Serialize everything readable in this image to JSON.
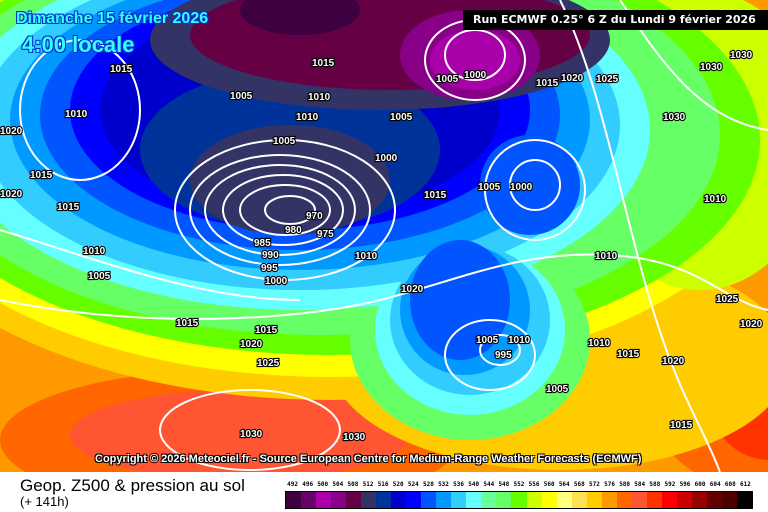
{
  "header": {
    "date_title": "Dimanche 15 février 2026",
    "time_title": "4:00 locale",
    "run_info": "Run ECMWF 0.25° 6 Z du Lundi 9 février 2026"
  },
  "copyright": "Copyright © 2026 Meteociel.fr - Source European Centre for Medium-Range Weather Forecasts (ECMWF)",
  "footer": {
    "product_title": "Geop. Z500 & pression au sol",
    "lead_time": "(+ 141h)"
  },
  "legend": {
    "values": [
      "492",
      "496",
      "500",
      "504",
      "508",
      "512",
      "516",
      "520",
      "524",
      "528",
      "532",
      "536",
      "540",
      "544",
      "548",
      "552",
      "556",
      "560",
      "564",
      "568",
      "572",
      "576",
      "580",
      "584",
      "588",
      "592",
      "596",
      "600",
      "604",
      "608",
      "612"
    ],
    "colors": [
      "#3d0040",
      "#6a0068",
      "#aa00aa",
      "#880088",
      "#660044",
      "#333366",
      "#003399",
      "#0000cc",
      "#0000ff",
      "#0055ff",
      "#0099ff",
      "#33ccff",
      "#66ffff",
      "#66ff99",
      "#66ff66",
      "#66ff00",
      "#ccff00",
      "#ffff00",
      "#ffff80",
      "#ffe050",
      "#ffcc00",
      "#ff9900",
      "#ff6600",
      "#ff5533",
      "#ff3300",
      "#ff0000",
      "#cc0000",
      "#990000",
      "#660000",
      "#4d0000",
      "#000000"
    ]
  },
  "isobar_labels": [
    "1015",
    "1010",
    "1005",
    "1015",
    "1010",
    "1010",
    "1005",
    "1000",
    "1005",
    "1015",
    "1020",
    "1025",
    "1030",
    "1030",
    "1030",
    "1020",
    "1015",
    "1015",
    "1020",
    "1010",
    "1005",
    "1005",
    "1000",
    "970",
    "975",
    "980",
    "985",
    "990",
    "995",
    "1000",
    "1015",
    "1005",
    "1000",
    "1010",
    "1020",
    "1010",
    "1010",
    "1025",
    "1020",
    "1015",
    "1015",
    "1020",
    "1025",
    "1005",
    "1010",
    "995",
    "1010",
    "1015",
    "1020",
    "1005",
    "1015",
    "1030",
    "1030"
  ]
}
